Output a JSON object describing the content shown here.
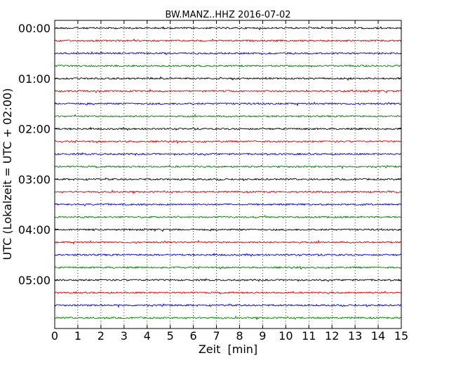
{
  "chart_data": {
    "type": "line",
    "title": "BW.MANZ..HHZ 2016-07-02",
    "xlabel": "Zeit  [min]",
    "ylabel": "UTC (Lokalzeit = UTC + 02:00)",
    "xlim": [
      0,
      15
    ],
    "x_ticks": [
      "0",
      "1",
      "2",
      "3",
      "4",
      "5",
      "6",
      "7",
      "8",
      "9",
      "10",
      "11",
      "12",
      "13",
      "14",
      "15"
    ],
    "y_tick_labels": [
      "00:00",
      "01:00",
      "02:00",
      "03:00",
      "04:00",
      "05:00"
    ],
    "grid": "vertical dotted",
    "trace_colors": [
      "#000000",
      "#e00000",
      "#0000c8",
      "#008000"
    ],
    "traces": [
      {
        "start": "00:00"
      },
      {
        "start": "00:15"
      },
      {
        "start": "00:30"
      },
      {
        "start": "00:45"
      },
      {
        "start": "01:00"
      },
      {
        "start": "01:15"
      },
      {
        "start": "01:30"
      },
      {
        "start": "01:45"
      },
      {
        "start": "02:00"
      },
      {
        "start": "02:15"
      },
      {
        "start": "02:30"
      },
      {
        "start": "02:45"
      },
      {
        "start": "03:00"
      },
      {
        "start": "03:15"
      },
      {
        "start": "03:30"
      },
      {
        "start": "03:45"
      },
      {
        "start": "04:00"
      },
      {
        "start": "04:15"
      },
      {
        "start": "04:30"
      },
      {
        "start": "04:45"
      },
      {
        "start": "05:00"
      },
      {
        "start": "05:15"
      },
      {
        "start": "05:30"
      },
      {
        "start": "05:45"
      }
    ]
  }
}
